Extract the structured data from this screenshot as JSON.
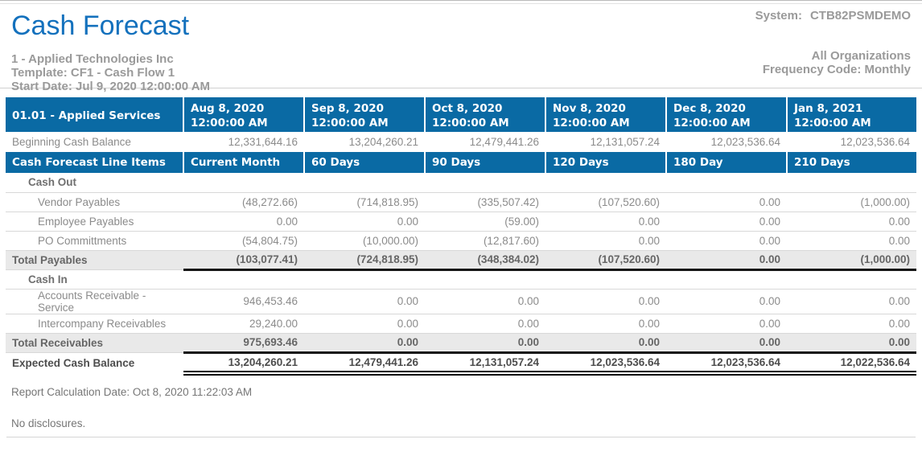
{
  "colors": {
    "header_blue": "#0a6aa4",
    "title_blue": "#1471bd",
    "muted_gray": "#9a9a9a",
    "total_row_bg": "#e9e9e9"
  },
  "header": {
    "title": "Cash Forecast",
    "system_label": "System:",
    "system_value": "CTB82PSMDEMO",
    "company": "1 - Applied Technologies Inc",
    "template": "Template: CF1 - Cash Flow 1",
    "start_date": "Start Date: Jul 9, 2020 12:00:00 AM",
    "organizations": "All Organizations",
    "frequency": "Frequency Code: Monthly"
  },
  "table": {
    "group_header": "01.01 - Applied Services",
    "date_columns": [
      {
        "date": "Aug 8, 2020",
        "time": "12:00:00 AM"
      },
      {
        "date": "Sep 8, 2020",
        "time": "12:00:00 AM"
      },
      {
        "date": "Oct 8, 2020",
        "time": "12:00:00 AM"
      },
      {
        "date": "Nov 8, 2020",
        "time": "12:00:00 AM"
      },
      {
        "date": "Dec 8, 2020",
        "time": "12:00:00 AM"
      },
      {
        "date": "Jan 8, 2021",
        "time": "12:00:00 AM"
      }
    ],
    "beginning": {
      "label": "Beginning Cash Balance",
      "values": [
        "12,331,644.16",
        "13,204,260.21",
        "12,479,441.26",
        "12,131,057.24",
        "12,023,536.64",
        "12,023,536.64"
      ]
    },
    "line_items": {
      "label": "Cash Forecast Line Items",
      "columns": [
        "Current Month",
        "60 Days",
        "90 Days",
        "120 Days",
        "180 Day",
        "210 Days"
      ]
    },
    "cash_out": {
      "title": "Cash Out",
      "rows": [
        {
          "label": "Vendor Payables",
          "values": [
            "(48,272.66)",
            "(714,818.95)",
            "(335,507.42)",
            "(107,520.60)",
            "0.00",
            "(1,000.00)"
          ]
        },
        {
          "label": "Employee Payables",
          "values": [
            "0.00",
            "0.00",
            "(59.00)",
            "0.00",
            "0.00",
            "0.00"
          ]
        },
        {
          "label": "PO Committments",
          "values": [
            "(54,804.75)",
            "(10,000.00)",
            "(12,817.60)",
            "0.00",
            "0.00",
            "0.00"
          ]
        }
      ],
      "total": {
        "label": "Total Payables",
        "values": [
          "(103,077.41)",
          "(724,818.95)",
          "(348,384.02)",
          "(107,520.60)",
          "0.00",
          "(1,000.00)"
        ]
      }
    },
    "cash_in": {
      "title": "Cash In",
      "rows": [
        {
          "label": "Accounts Receivable - Service",
          "values": [
            "946,453.46",
            "0.00",
            "0.00",
            "0.00",
            "0.00",
            "0.00"
          ]
        },
        {
          "label": "Intercompany Receivables",
          "values": [
            "29,240.00",
            "0.00",
            "0.00",
            "0.00",
            "0.00",
            "0.00"
          ]
        }
      ],
      "total": {
        "label": "Total Receivables",
        "values": [
          "975,693.46",
          "0.00",
          "0.00",
          "0.00",
          "0.00",
          "0.00"
        ]
      }
    },
    "expected": {
      "label": "Expected Cash Balance",
      "values": [
        "13,204,260.21",
        "12,479,441.26",
        "12,131,057.24",
        "12,023,536.64",
        "12,023,536.64",
        "12,022,536.64"
      ]
    }
  },
  "footer": {
    "calculation_date": "Report Calculation Date: Oct 8, 2020 11:22:03 AM",
    "disclosures": "No disclosures."
  }
}
